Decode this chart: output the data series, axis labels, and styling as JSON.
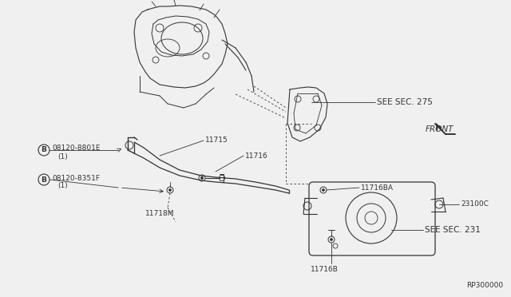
{
  "bg_color": "#f0f0f0",
  "line_color": "#333333",
  "label_color": "#333333",
  "diagram_ref": "RP300000",
  "labels": {
    "see_sec_275": "SEE SEC. 275",
    "see_sec_231": "SEE SEC. 231",
    "front": "FRONT",
    "11715": "11715",
    "11716": "11716",
    "11716BA": "11716BA",
    "11716B": "11716B",
    "11718M": "11718M",
    "23100C": "23100C",
    "bolt_b1": "08120-8801E",
    "bolt_b1_sub": "（1）",
    "bolt_b1_circle": "B",
    "bolt_b2": "08120-8351F",
    "bolt_b2_sub": "（1）",
    "bolt_b2_circle": "B"
  },
  "font_size_small": 6.5,
  "font_size_medium": 7.5,
  "font_size_large": 9
}
